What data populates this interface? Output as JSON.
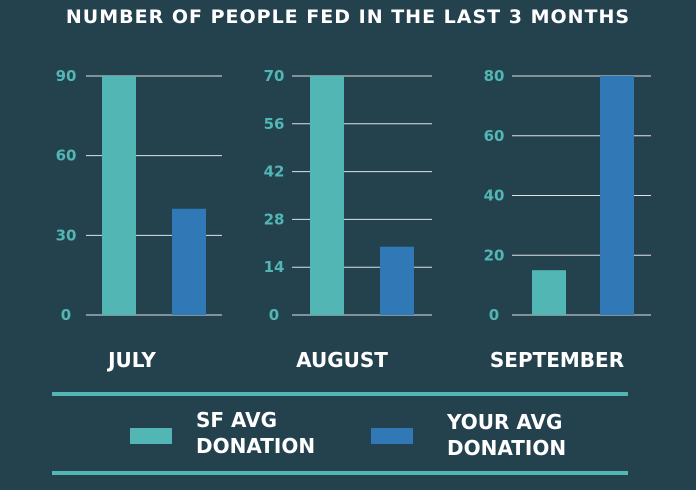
{
  "title": "NUMBER OF PEOPLE FED IN THE LAST 3 MONTHS",
  "colors": {
    "background": "#24414e",
    "sf_avg": "#52b6b4",
    "your_avg": "#3079b6",
    "tick_text": "#52b6b4",
    "gridline": "#ffffff"
  },
  "legend": {
    "sf_avg": {
      "line1": "SF AVG",
      "line2": "DONATION"
    },
    "your_avg": {
      "line1": "YOUR AVG",
      "line2": "DONATION"
    }
  },
  "chart_data": [
    {
      "type": "bar",
      "title": "NUMBER OF PEOPLE FED IN THE LAST 3 MONTHS",
      "category_label": "JULY",
      "series": [
        {
          "name": "SF AVG DONATION",
          "values": [
            90
          ]
        },
        {
          "name": "YOUR AVG DONATION",
          "values": [
            40
          ]
        }
      ],
      "yticks": [
        0,
        30,
        60,
        90
      ],
      "ylim": [
        0,
        90
      ]
    },
    {
      "type": "bar",
      "category_label": "AUGUST",
      "series": [
        {
          "name": "SF AVG DONATION",
          "values": [
            70
          ]
        },
        {
          "name": "YOUR AVG DONATION",
          "values": [
            20
          ]
        }
      ],
      "yticks": [
        0,
        14,
        28,
        42,
        56,
        70
      ],
      "ylim": [
        0,
        70
      ]
    },
    {
      "type": "bar",
      "category_label": "SEPTEMBER",
      "series": [
        {
          "name": "SF AVG DONATION",
          "values": [
            15
          ]
        },
        {
          "name": "YOUR AVG DONATION",
          "values": [
            80
          ]
        }
      ],
      "yticks": [
        0,
        20,
        40,
        60,
        80
      ],
      "ylim": [
        0,
        80
      ]
    }
  ]
}
